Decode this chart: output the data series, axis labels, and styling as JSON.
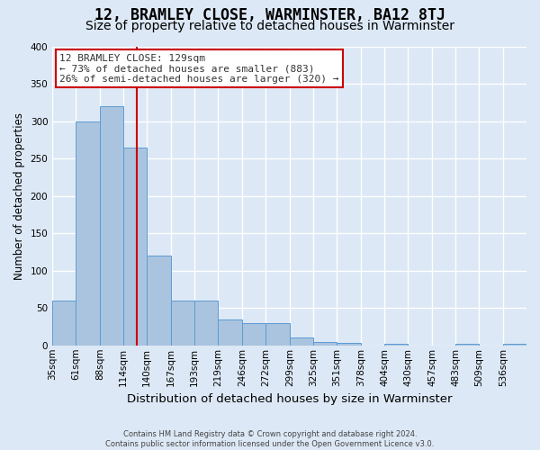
{
  "title": "12, BRAMLEY CLOSE, WARMINSTER, BA12 8TJ",
  "subtitle": "Size of property relative to detached houses in Warminster",
  "xlabel": "Distribution of detached houses by size in Warminster",
  "ylabel": "Number of detached properties",
  "footer_line1": "Contains HM Land Registry data © Crown copyright and database right 2024.",
  "footer_line2": "Contains public sector information licensed under the Open Government Licence v3.0.",
  "bar_edges": [
    35,
    61,
    88,
    114,
    140,
    167,
    193,
    219,
    246,
    272,
    299,
    325,
    351,
    378,
    404,
    430,
    457,
    483,
    509,
    536,
    562
  ],
  "bar_heights": [
    60,
    300,
    320,
    265,
    120,
    60,
    60,
    35,
    30,
    30,
    10,
    5,
    3,
    0,
    2,
    0,
    0,
    2,
    0,
    2
  ],
  "bar_color": "#aac4df",
  "bar_edge_color": "#5b9bd5",
  "property_size": 129,
  "vline_color": "#cc0000",
  "annotation_text": "12 BRAMLEY CLOSE: 129sqm\n← 73% of detached houses are smaller (883)\n26% of semi-detached houses are larger (320) →",
  "annotation_box_color": "#cc0000",
  "annotation_text_color": "#333333",
  "bg_color": "#dce8f5",
  "plot_bg_color": "#dce8f5",
  "grid_color": "#ffffff",
  "ylim": [
    0,
    400
  ],
  "yticks": [
    0,
    50,
    100,
    150,
    200,
    250,
    300,
    350,
    400
  ],
  "title_fontsize": 12,
  "subtitle_fontsize": 10,
  "xlabel_fontsize": 9.5,
  "ylabel_fontsize": 8.5,
  "tick_fontsize": 7.5
}
